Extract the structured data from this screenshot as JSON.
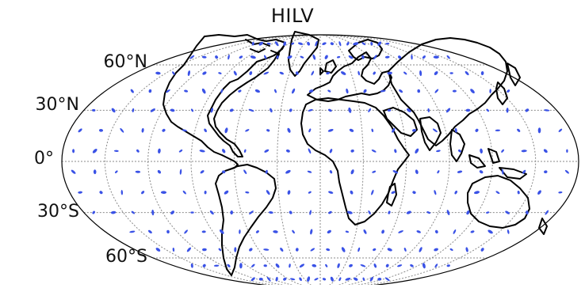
{
  "title": "HILV",
  "projection": "mollweide",
  "graticule": {
    "latitude_labels": [
      "60°N",
      "30°N",
      "0°",
      "30°S",
      "60°S"
    ],
    "latitudes": [
      60,
      30,
      0,
      -30,
      -60
    ],
    "meridian_spacing_deg": 30,
    "line_color": "#8a8a8a",
    "line_style": "dotted"
  },
  "colors": {
    "marker": "#3a52e6",
    "coastline": "#000000",
    "background": "#ffffff"
  },
  "markers": {
    "shape": "small ellipse",
    "layout": "regular grid of points across the globe",
    "lat_spacing_deg": 12,
    "lon_spacing_deg": 15
  }
}
